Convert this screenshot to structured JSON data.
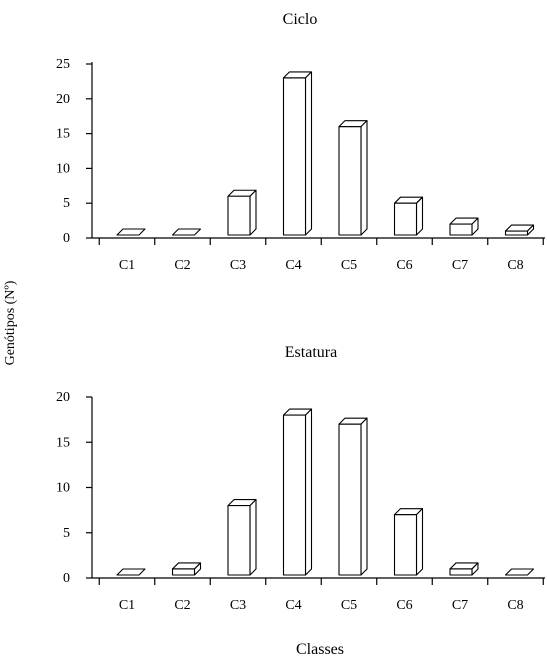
{
  "ylabel": "Genótipos (Nº)",
  "xlabel": "Classes",
  "chart_data": [
    {
      "type": "bar",
      "title": "Ciclo",
      "categories": [
        "C1",
        "C2",
        "C3",
        "C4",
        "C5",
        "C6",
        "C7",
        "C8"
      ],
      "values": [
        0,
        0,
        6,
        23,
        16,
        5,
        2,
        1
      ],
      "ylim": [
        0,
        25
      ],
      "yticks": [
        0,
        5,
        10,
        15,
        20,
        25
      ],
      "grid": false,
      "bar_style": "3d-outline"
    },
    {
      "type": "bar",
      "title": "Estatura",
      "categories": [
        "C1",
        "C2",
        "C3",
        "C4",
        "C5",
        "C6",
        "C7",
        "C8"
      ],
      "values": [
        0,
        1,
        8,
        18,
        17,
        7,
        1,
        0
      ],
      "ylim": [
        0,
        20
      ],
      "yticks": [
        0,
        5,
        10,
        15,
        20
      ],
      "grid": false,
      "bar_style": "3d-outline"
    }
  ]
}
